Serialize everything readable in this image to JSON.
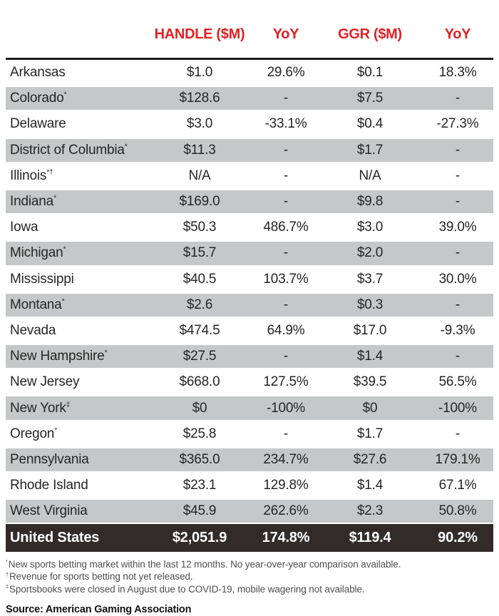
{
  "chart_data": {
    "type": "table",
    "columns": [
      "HANDLE ($M)",
      "YoY",
      "GGR ($M)",
      "YoY"
    ],
    "rows": [
      {
        "state": "Arkansas",
        "marker": "",
        "handle": "$1.0",
        "handle_yoy": "29.6%",
        "ggr": "$0.1",
        "ggr_yoy": "18.3%"
      },
      {
        "state": "Colorado",
        "marker": "*",
        "handle": "$128.6",
        "handle_yoy": "-",
        "ggr": "$7.5",
        "ggr_yoy": "-"
      },
      {
        "state": "Delaware",
        "marker": "",
        "handle": "$3.0",
        "handle_yoy": "-33.1%",
        "ggr": "$0.4",
        "ggr_yoy": "-27.3%"
      },
      {
        "state": "District of Columbia",
        "marker": "*",
        "handle": "$11.3",
        "handle_yoy": "-",
        "ggr": "$1.7",
        "ggr_yoy": "-"
      },
      {
        "state": "Illinois",
        "marker": "*†",
        "handle": "N/A",
        "handle_yoy": "-",
        "ggr": "N/A",
        "ggr_yoy": "-"
      },
      {
        "state": "Indiana",
        "marker": "*",
        "handle": "$169.0",
        "handle_yoy": "-",
        "ggr": "$9.8",
        "ggr_yoy": "-"
      },
      {
        "state": "Iowa",
        "marker": "",
        "handle": "$50.3",
        "handle_yoy": "486.7%",
        "ggr": "$3.0",
        "ggr_yoy": "39.0%"
      },
      {
        "state": "Michigan",
        "marker": "*",
        "handle": "$15.7",
        "handle_yoy": "-",
        "ggr": "$2.0",
        "ggr_yoy": "-"
      },
      {
        "state": "Mississippi",
        "marker": "",
        "handle": "$40.5",
        "handle_yoy": "103.7%",
        "ggr": "$3.7",
        "ggr_yoy": "30.0%"
      },
      {
        "state": "Montana",
        "marker": "*",
        "handle": "$2.6",
        "handle_yoy": "-",
        "ggr": "$0.3",
        "ggr_yoy": "-"
      },
      {
        "state": "Nevada",
        "marker": "",
        "handle": "$474.5",
        "handle_yoy": "64.9%",
        "ggr": "$17.0",
        "ggr_yoy": "-9.3%"
      },
      {
        "state": "New Hampshire",
        "marker": "*",
        "handle": "$27.5",
        "handle_yoy": "-",
        "ggr": "$1.4",
        "ggr_yoy": "-"
      },
      {
        "state": "New Jersey",
        "marker": "",
        "handle": "$668.0",
        "handle_yoy": "127.5%",
        "ggr": "$39.5",
        "ggr_yoy": "56.5%"
      },
      {
        "state": "New York",
        "marker": "‡",
        "handle": "$0",
        "handle_yoy": "-100%",
        "ggr": "$0",
        "ggr_yoy": "-100%"
      },
      {
        "state": "Oregon",
        "marker": "*",
        "handle": "$25.8",
        "handle_yoy": "-",
        "ggr": "$1.7",
        "ggr_yoy": "-"
      },
      {
        "state": "Pennsylvania",
        "marker": "",
        "handle": "$365.0",
        "handle_yoy": "234.7%",
        "ggr": "$27.6",
        "ggr_yoy": "179.1%"
      },
      {
        "state": "Rhode Island",
        "marker": "",
        "handle": "$23.1",
        "handle_yoy": "129.8%",
        "ggr": "$1.4",
        "ggr_yoy": "67.1%"
      },
      {
        "state": "West Virginia",
        "marker": "",
        "handle": "$45.9",
        "handle_yoy": "262.6%",
        "ggr": "$2.3",
        "ggr_yoy": "50.8%"
      }
    ],
    "total_row": {
      "state": "United States",
      "handle": "$2,051.9",
      "handle_yoy": "174.8%",
      "ggr": "$119.4",
      "ggr_yoy": "90.2%"
    },
    "footnotes": [
      {
        "marker": "*",
        "text": "New sports betting market within the last 12 months. No year-over-year comparison available."
      },
      {
        "marker": "†",
        "text": "Revenue for sports betting not yet released."
      },
      {
        "marker": "‡",
        "text": "Sportsbooks were closed in August due to COVID-19, mobile wagering not available."
      }
    ],
    "source": "Source: American Gaming Association",
    "colors": {
      "header_text": "#e32124",
      "stripe": "#c6c7c8",
      "total_bg": "#322b28",
      "rule": "#1c1c1c"
    }
  }
}
